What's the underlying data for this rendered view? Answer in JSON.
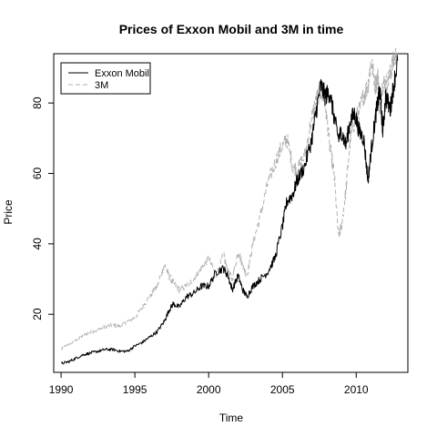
{
  "chart_data": {
    "type": "line",
    "title": "Prices of Exxon Mobil and 3M in time",
    "xlabel": "Time",
    "ylabel": "Price",
    "xlim": [
      1989.5,
      2013.5
    ],
    "ylim": [
      3.5,
      94
    ],
    "x_ticks": [
      1990,
      1995,
      2000,
      2005,
      2010
    ],
    "y_ticks": [
      20,
      40,
      60,
      80
    ],
    "grid": false,
    "legend": "top-left",
    "series": [
      {
        "name": "Exxon Mobil",
        "color": "#000000",
        "style": "solid",
        "x": [
          1990.0,
          1990.5,
          1991.0,
          1991.5,
          1992.0,
          1992.5,
          1993.0,
          1993.5,
          1994.0,
          1994.5,
          1995.0,
          1995.5,
          1996.0,
          1996.5,
          1997.0,
          1997.3,
          1997.6,
          1998.0,
          1998.5,
          1999.0,
          1999.5,
          2000.0,
          2000.5,
          2001.0,
          2001.3,
          2001.6,
          2002.0,
          2002.3,
          2002.6,
          2003.0,
          2003.5,
          2004.0,
          2004.5,
          2005.0,
          2005.3,
          2005.7,
          2006.0,
          2006.5,
          2007.0,
          2007.3,
          2007.6,
          2007.9,
          2008.2,
          2008.5,
          2008.8,
          2009.0,
          2009.3,
          2009.6,
          2009.9,
          2010.2,
          2010.5,
          2010.8,
          2011.0,
          2011.3,
          2011.5,
          2011.6,
          2011.8,
          2012.0,
          2012.3,
          2012.5,
          2012.8
        ],
        "values": [
          6,
          6.5,
          7.5,
          8.5,
          9,
          9.5,
          10,
          10,
          9.5,
          9.5,
          11,
          12,
          13.5,
          15,
          18,
          21,
          23,
          22,
          25,
          26,
          28,
          28,
          32,
          33,
          31,
          27,
          31,
          27,
          25,
          28,
          30,
          32,
          36,
          45,
          52,
          54,
          58,
          62,
          70,
          78,
          85,
          82,
          83,
          76,
          70,
          72,
          68,
          75,
          77,
          72,
          70,
          58,
          66,
          76,
          81,
          84,
          72,
          82,
          78,
          84,
          92
        ]
      },
      {
        "name": "3M",
        "color": "#b0b0b0",
        "style": "dashed",
        "x": [
          1990.0,
          1990.5,
          1991.0,
          1991.5,
          1992.0,
          1992.5,
          1993.0,
          1993.5,
          1994.0,
          1994.5,
          1995.0,
          1995.5,
          1996.0,
          1996.5,
          1997.0,
          1997.3,
          1997.6,
          1998.0,
          1998.5,
          1999.0,
          1999.5,
          2000.0,
          2000.5,
          2001.0,
          2001.3,
          2001.6,
          2002.0,
          2002.3,
          2002.6,
          2003.0,
          2003.5,
          2004.0,
          2004.5,
          2005.0,
          2005.3,
          2005.7,
          2006.0,
          2006.5,
          2007.0,
          2007.3,
          2007.6,
          2007.9,
          2008.2,
          2008.5,
          2008.8,
          2009.0,
          2009.3,
          2009.6,
          2009.9,
          2010.2,
          2010.5,
          2010.8,
          2011.0,
          2011.3,
          2011.5,
          2011.6,
          2011.8,
          2012.0,
          2012.3,
          2012.5,
          2012.8
        ],
        "values": [
          10,
          11.5,
          12.5,
          14,
          15,
          15.5,
          16.5,
          17,
          16.5,
          18,
          19,
          22,
          25,
          28,
          34,
          31,
          29,
          27,
          28,
          30,
          33,
          36,
          31,
          37,
          32,
          30,
          38,
          34,
          31,
          40,
          48,
          57,
          63,
          68,
          70,
          62,
          61,
          65,
          76,
          81,
          83,
          80,
          68,
          60,
          42,
          45,
          55,
          70,
          75,
          78,
          82,
          85,
          92,
          85,
          88,
          76,
          86,
          85,
          88,
          92,
          94
        ]
      }
    ]
  }
}
